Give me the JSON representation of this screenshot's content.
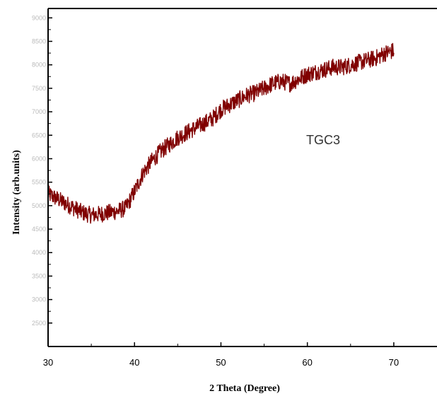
{
  "chart_data": {
    "type": "line",
    "xlabel": "2 Theta (Degree)",
    "ylabel": "Intensity (arb.units)",
    "xlim": [
      30,
      75
    ],
    "ylim": [
      2000,
      9200
    ],
    "x_ticks": [
      "30",
      "40",
      "50",
      "60",
      "70"
    ],
    "y_ticks": [
      "2500",
      "3000",
      "3500",
      "4000",
      "4500",
      "5000",
      "5500",
      "6000",
      "6500",
      "7000",
      "7500",
      "8000",
      "8500",
      "9000"
    ],
    "annotation": "TGC3",
    "line_color": "#800000",
    "series": [
      {
        "x": [
          30,
          31,
          32,
          33,
          34,
          35,
          36,
          37,
          38,
          39,
          40,
          41,
          42,
          43,
          44,
          45,
          46,
          47,
          48,
          49,
          50,
          51,
          52,
          53,
          54,
          55,
          56,
          57,
          58,
          59,
          60,
          61,
          62,
          63,
          64,
          65,
          66,
          67,
          68,
          69,
          70
        ],
        "y": [
          5250,
          5150,
          5050,
          4950,
          4850,
          4800,
          4820,
          4850,
          4880,
          4950,
          5300,
          5700,
          5950,
          6150,
          6300,
          6450,
          6550,
          6650,
          6750,
          6850,
          7050,
          7150,
          7250,
          7350,
          7400,
          7500,
          7600,
          7650,
          7600,
          7700,
          7800,
          7850,
          7900,
          7950,
          7950,
          8000,
          8050,
          8100,
          8150,
          8250,
          8300
        ]
      }
    ]
  }
}
